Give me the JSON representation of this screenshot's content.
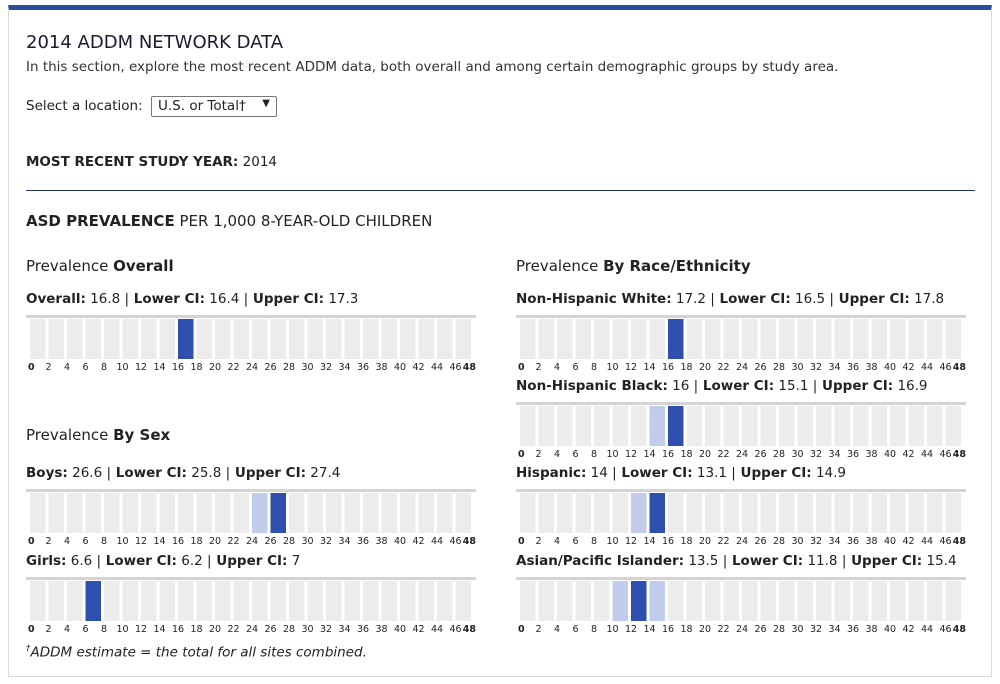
{
  "page": {
    "title": "2014 ADDM NETWORK DATA",
    "intro": "In this section, explore the most recent ADDM data, both overall and among certain demographic groups by study area.",
    "location_label": "Select a location:",
    "location_value": "U.S. or Total†",
    "year_label": "MOST RECENT STUDY YEAR:",
    "year_value": "2014",
    "asd_label_bold": "ASD PREVALENCE",
    "asd_label_rest": "PER 1,000 8-YEAR-OLD CHILDREN",
    "footnote_mark": "†",
    "footnote_text": "ADDM estimate = the total for all sites combined."
  },
  "sections": {
    "overall": {
      "prefix": "Prevalence",
      "bold": "Overall"
    },
    "sex": {
      "prefix": "Prevalence",
      "bold": "By Sex"
    },
    "race": {
      "prefix": "Prevalence",
      "bold": "By Race/Ethnicity"
    }
  },
  "labels": {
    "lower": "Lower CI:",
    "upper": "Upper CI:",
    "sep": "|"
  },
  "colors": {
    "bar": "#2e4fad",
    "ci": "#c2cdeb",
    "cell": "#ececec",
    "accent": "#2b4f9a"
  },
  "chart_data": [
    {
      "type": "bar",
      "name": "Overall",
      "value": 16.8,
      "lower": 16.4,
      "upper": 17.3,
      "xlim": [
        0,
        48
      ]
    },
    {
      "type": "bar",
      "name": "Boys",
      "value": 26.6,
      "lower": 25.8,
      "upper": 27.4,
      "xlim": [
        0,
        48
      ]
    },
    {
      "type": "bar",
      "name": "Girls",
      "value": 6.6,
      "lower": 6.2,
      "upper": 7,
      "xlim": [
        0,
        48
      ]
    },
    {
      "type": "bar",
      "name": "Non-Hispanic White",
      "value": 17.2,
      "lower": 16.5,
      "upper": 17.8,
      "xlim": [
        0,
        48
      ]
    },
    {
      "type": "bar",
      "name": "Non-Hispanic Black",
      "value": 16,
      "lower": 15.1,
      "upper": 16.9,
      "xlim": [
        0,
        48
      ]
    },
    {
      "type": "bar",
      "name": "Hispanic",
      "value": 14,
      "lower": 13.1,
      "upper": 14.9,
      "xlim": [
        0,
        48
      ]
    },
    {
      "type": "bar",
      "name": "Asian/Pacific Islander",
      "value": 13.5,
      "lower": 11.8,
      "upper": 15.4,
      "xlim": [
        0,
        48
      ]
    }
  ],
  "tick_labels": [
    "0",
    "2",
    "4",
    "6",
    "8",
    "10",
    "12",
    "14",
    "16",
    "18",
    "20",
    "22",
    "24",
    "26",
    "28",
    "30",
    "32",
    "34",
    "36",
    "38",
    "40",
    "42",
    "44",
    "46",
    "48"
  ]
}
